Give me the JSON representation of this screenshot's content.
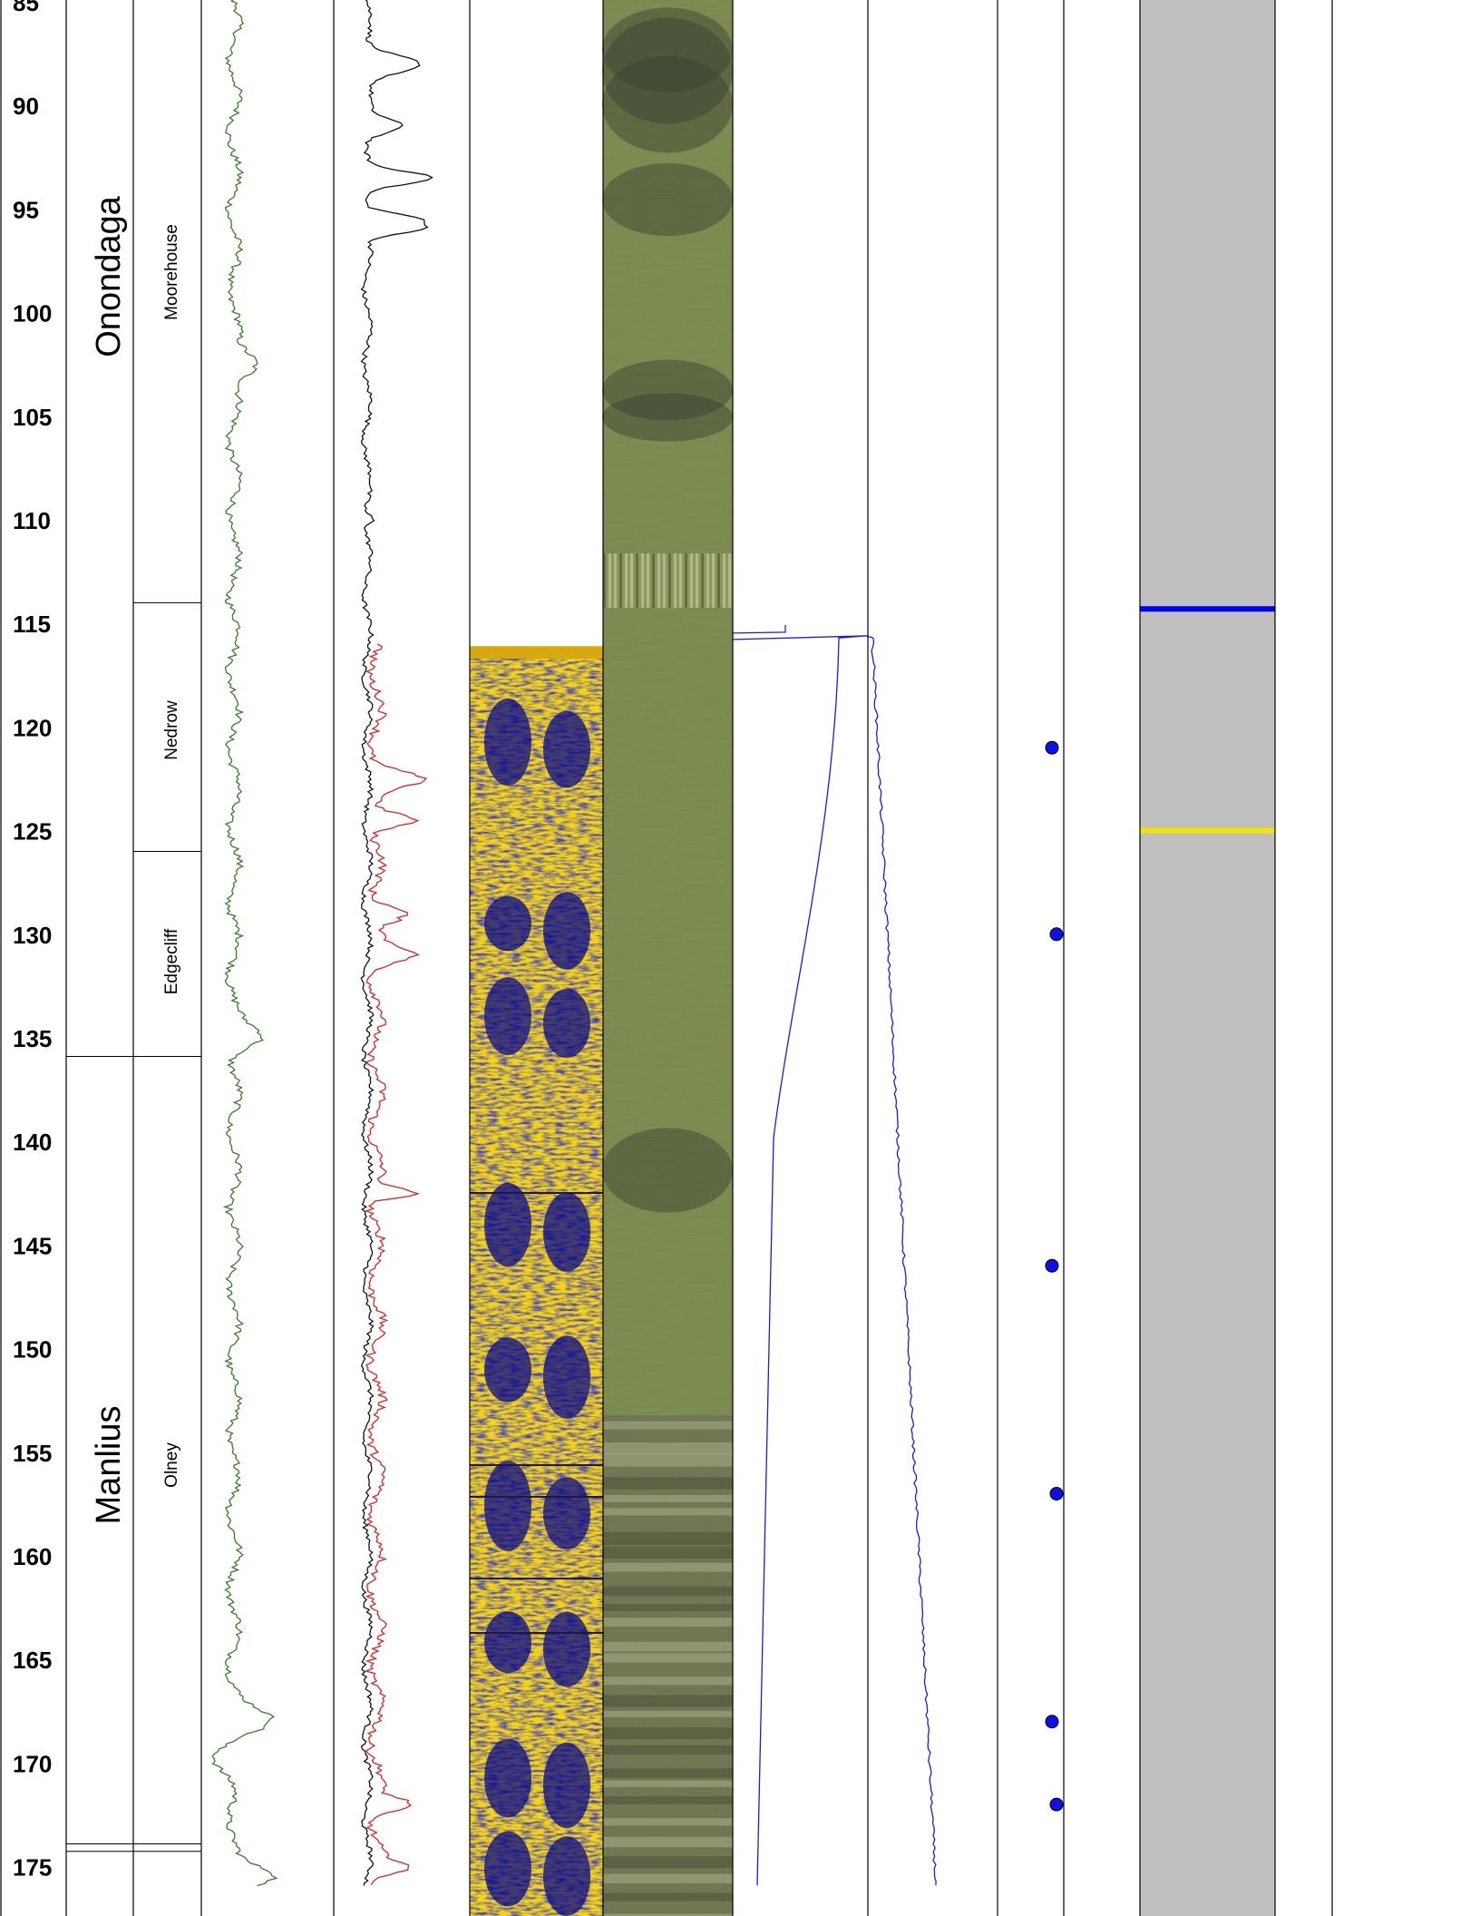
{
  "depth_axis": {
    "min": 85,
    "max": 176,
    "ticks": [
      85,
      90,
      95,
      100,
      105,
      110,
      115,
      120,
      125,
      130,
      135,
      140,
      145,
      150,
      155,
      160,
      165,
      170,
      175
    ]
  },
  "formations": [
    {
      "name": "Onondaga",
      "top": 80,
      "bottom": 136
    },
    {
      "name": "Manlius",
      "top": 136,
      "bottom": 174
    }
  ],
  "members": [
    {
      "name": "Moorehouse",
      "top": 80,
      "bottom": 114
    },
    {
      "name": "Nedrow",
      "top": 114,
      "bottom": 126
    },
    {
      "name": "Edgecliff",
      "top": 126,
      "bottom": 136
    },
    {
      "name": "Olney",
      "top": 136,
      "bottom": 174
    }
  ],
  "markers": {
    "points": [
      121,
      130,
      146,
      157,
      168,
      172
    ],
    "lines": [
      {
        "depth": 114.3,
        "color": "#0000ee"
      },
      {
        "depth": 125,
        "color": "#f2e600"
      }
    ]
  },
  "colors": {
    "gamma": "#3a7a2a",
    "black_log": "#111111",
    "red_log": "#e02020",
    "blue_log": "#1a1aee",
    "dot": "#1010e6",
    "shade": "#c0c0c0",
    "acoustic_yellow": "#f2d21a",
    "acoustic_blue": "#0a0a8a",
    "optical": "#8a9a5a"
  }
}
